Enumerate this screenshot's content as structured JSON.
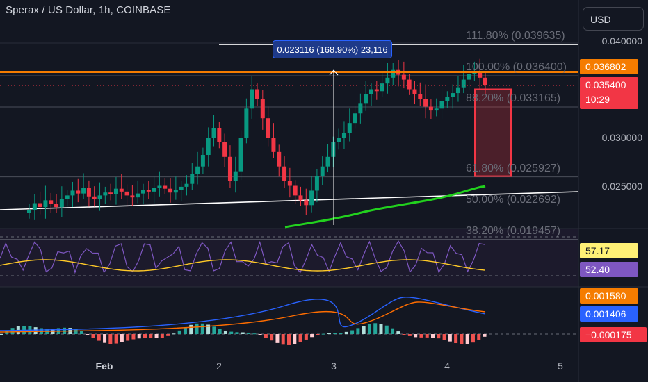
{
  "header": {
    "title": "Sperax / US Dollar, 1h, COINBASE",
    "currency": "USD"
  },
  "price_axis": {
    "ticks": [
      "0.040000",
      "0.030000",
      "0.025000"
    ]
  },
  "price_tags": {
    "orange_level": "0.036802",
    "last_price": "0.035400",
    "countdown": "10:29"
  },
  "rsi": {
    "ma_value": "57.17",
    "rsi_value": "52.40"
  },
  "macd": {
    "signal_value": "0.001580",
    "macd_value": "0.001406",
    "histogram_value": "−0.000175"
  },
  "time_axis": {
    "labels": [
      {
        "text": "Feb",
        "bold": true
      },
      {
        "text": "2",
        "bold": false
      },
      {
        "text": "3",
        "bold": false
      },
      {
        "text": "4",
        "bold": false
      },
      {
        "text": "5",
        "bold": false
      }
    ]
  },
  "fib_levels": [
    {
      "label": "111.80% (0.039635)",
      "ratio": 1.118,
      "price": 0.039635
    },
    {
      "label": "100.00% (0.036400)",
      "ratio": 1.0,
      "price": 0.0364
    },
    {
      "label": "88.20% (0.033165)",
      "ratio": 0.882,
      "price": 0.033165
    },
    {
      "label": "61.80% (0.025927)",
      "ratio": 0.618,
      "price": 0.025927
    },
    {
      "label": "50.00% (0.022692)",
      "ratio": 0.5,
      "price": 0.022692
    },
    {
      "label": "38.20% (0.019457)",
      "ratio": 0.382,
      "price": 0.019457
    }
  ],
  "measure_label": "0.023116 (168.90%) 23,116",
  "colors": {
    "background": "#131722",
    "up": "#089981",
    "down": "#f23645",
    "orange": "#f57c00",
    "ma_green": "#22d11e",
    "rsi": "#7e57c2",
    "rsi_ma": "#ffca28",
    "macd_line": "#2962ff",
    "signal_line": "#ff6d00",
    "measure": "#2962ff"
  },
  "chart_data": {
    "type": "candlestick",
    "title": "Sperax / US Dollar, 1h, COINBASE",
    "x_range": [
      "Feb 1",
      "Feb 5"
    ],
    "y_range": [
      0.0195,
      0.041
    ],
    "series": [
      {
        "name": "candles",
        "approx_closes": [
          0.0225,
          0.0232,
          0.0228,
          0.0235,
          0.0231,
          0.0228,
          0.0236,
          0.024,
          0.0245,
          0.0242,
          0.0248,
          0.0239,
          0.0236,
          0.024,
          0.0243,
          0.0241,
          0.0247,
          0.0244,
          0.024,
          0.0238,
          0.0242,
          0.0246,
          0.0244,
          0.0248,
          0.025,
          0.0247,
          0.0243,
          0.0246,
          0.0249,
          0.0252,
          0.0262,
          0.027,
          0.0282,
          0.03,
          0.031,
          0.0295,
          0.028,
          0.0255,
          0.0265,
          0.03,
          0.033,
          0.035,
          0.034,
          0.032,
          0.03,
          0.0285,
          0.027,
          0.0255,
          0.025,
          0.024,
          0.0235,
          0.023,
          0.0245,
          0.026,
          0.027,
          0.028,
          0.0295,
          0.03,
          0.0305,
          0.0315,
          0.0325,
          0.0335,
          0.0345,
          0.035,
          0.0348,
          0.0356,
          0.0362,
          0.037,
          0.0365,
          0.036,
          0.035,
          0.0345,
          0.034,
          0.0332,
          0.0328,
          0.033,
          0.0338,
          0.0342,
          0.0346,
          0.0352,
          0.036,
          0.0366,
          0.0368,
          0.0362,
          0.0354
        ]
      }
    ],
    "indicators": {
      "rsi": {
        "rsi": 52.4,
        "rsi_ma": 57.17
      },
      "macd": {
        "macd": 0.001406,
        "signal": 0.00158,
        "histogram": -0.000175
      }
    },
    "horizontal_levels": {
      "orange": 0.036802,
      "last": 0.0354
    },
    "measurement": {
      "delta": 0.023116,
      "percent": 168.9,
      "ticks": 23116
    }
  }
}
